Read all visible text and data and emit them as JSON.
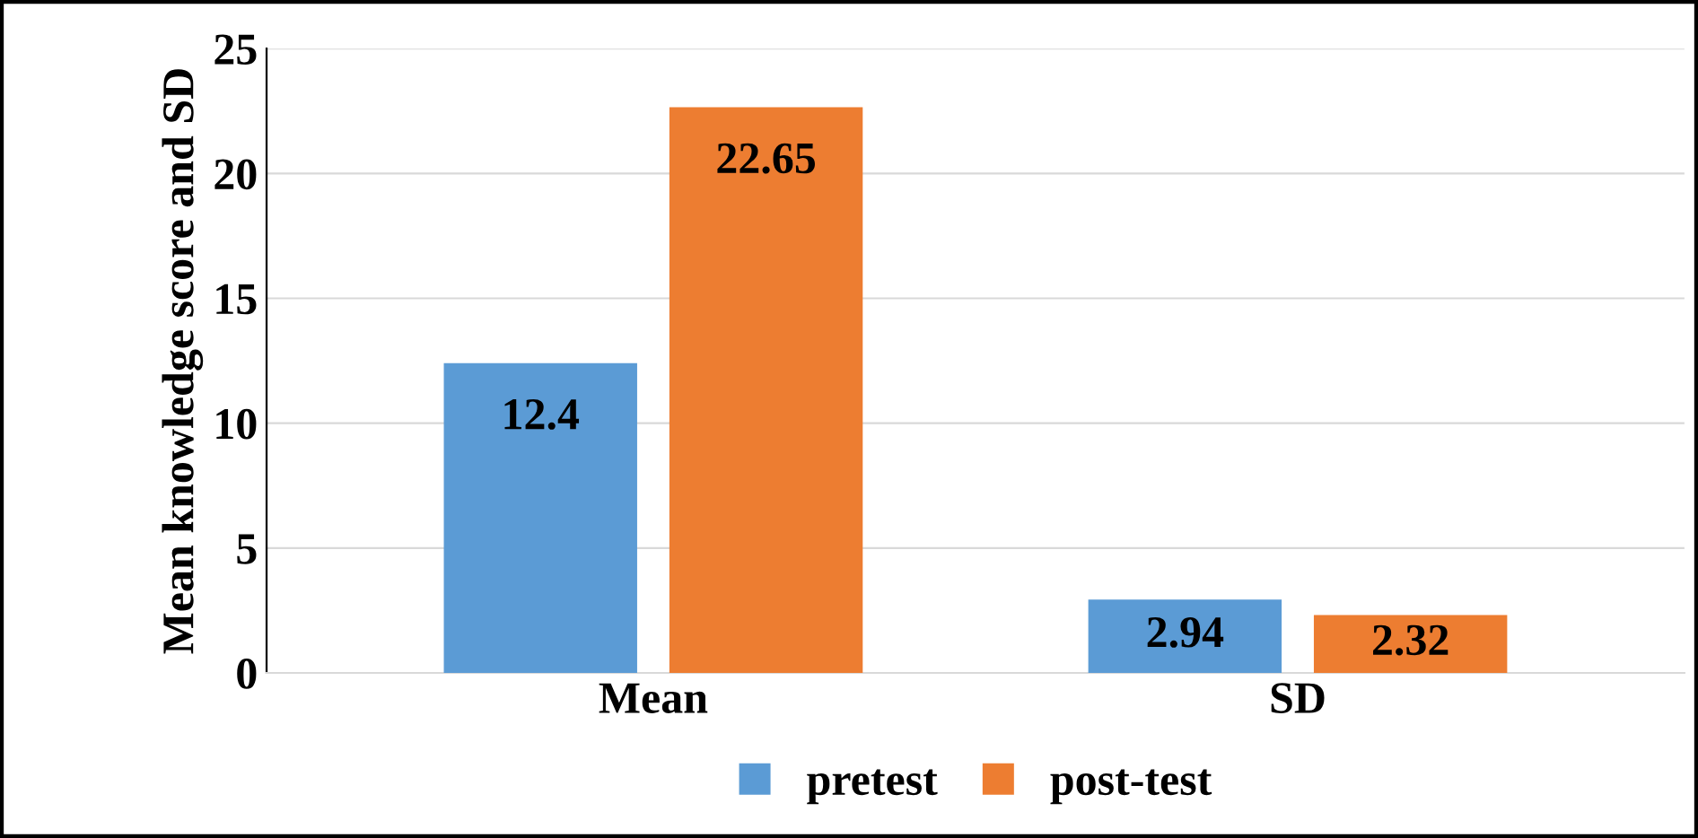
{
  "chart_data": {
    "type": "bar",
    "ylabel": "Mean knowledge score and SD",
    "categories": [
      "Mean",
      "SD"
    ],
    "series": [
      {
        "name": "pretest",
        "color": "#5b9bd5",
        "values": [
          12.4,
          2.94
        ]
      },
      {
        "name": "post-test",
        "color": "#ed7d31",
        "values": [
          22.65,
          2.32
        ]
      }
    ],
    "ylim": [
      0,
      25
    ],
    "yticks": [
      0,
      5,
      10,
      15,
      20,
      25
    ],
    "grid": "y",
    "legend": "bottom",
    "data_labels": true
  }
}
